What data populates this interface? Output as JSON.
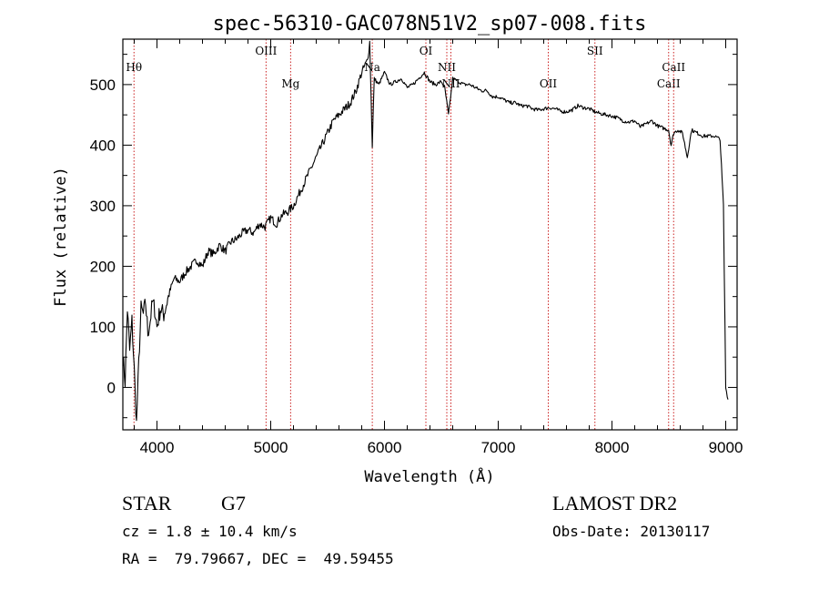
{
  "chart_data": {
    "type": "line",
    "title": "spec-56310-GAC078N51V2_sp07-008.fits",
    "xlabel": "Wavelength (Å)",
    "ylabel": "Flux (relative)",
    "xlim": [
      3700,
      9100
    ],
    "ylim": [
      -70,
      575
    ],
    "xticks": [
      4000,
      5000,
      6000,
      7000,
      8000,
      9000
    ],
    "yticks": [
      0,
      100,
      200,
      300,
      400,
      500
    ],
    "xtick_labels": [
      "4000",
      "5000",
      "6000",
      "7000",
      "8000",
      "9000"
    ],
    "ytick_labels": [
      "0",
      "100",
      "200",
      "300",
      "400",
      "500"
    ],
    "grid": false,
    "line_color": "#000000",
    "marker_color": "#cc2222",
    "spectral_lines": [
      {
        "label": "Hθ",
        "wavelength": 3798,
        "row": "upper"
      },
      {
        "label": "OIII",
        "wavelength": 4959,
        "row": "top"
      },
      {
        "label": "Mg",
        "wavelength": 5175,
        "row": "lower"
      },
      {
        "label": "Na",
        "wavelength": 5893,
        "row": "upper"
      },
      {
        "label": "OI",
        "wavelength": 6364,
        "row": "top"
      },
      {
        "label": "NII",
        "wavelength": 6548,
        "row": "upper"
      },
      {
        "label": "NII",
        "wavelength": 6584,
        "row": "lower"
      },
      {
        "label": "OII",
        "wavelength": 7440,
        "row": "lower"
      },
      {
        "label": "SII",
        "wavelength": 7850,
        "row": "top"
      },
      {
        "label": "CaII",
        "wavelength": 8498,
        "row": "lower"
      },
      {
        "label": "CaII",
        "wavelength": 8542,
        "row": "upper"
      }
    ],
    "series": [
      {
        "x": [
          3700,
          3720,
          3740,
          3760,
          3780,
          3800,
          3820,
          3840,
          3860,
          3880,
          3900,
          3920,
          3940,
          3960,
          3980,
          4000,
          4030,
          4060,
          4100,
          4150,
          4200,
          4250,
          4300,
          4350,
          4400,
          4450,
          4500,
          4550,
          4600,
          4650,
          4700,
          4750,
          4800,
          4850,
          4900,
          4950,
          5000,
          5050,
          5100,
          5150,
          5200,
          5250,
          5300,
          5350,
          5400,
          5450,
          5500,
          5550,
          5600,
          5650,
          5700,
          5750,
          5800,
          5850,
          5870,
          5893,
          5910,
          5950,
          6000,
          6050,
          6100,
          6150,
          6200,
          6250,
          6300,
          6350,
          6400,
          6450,
          6500,
          6530,
          6563,
          6600,
          6650,
          6700,
          6750,
          6800,
          6850,
          6900,
          6950,
          7000,
          7050,
          7100,
          7150,
          7200,
          7250,
          7300,
          7350,
          7400,
          7450,
          7500,
          7550,
          7600,
          7650,
          7700,
          7750,
          7800,
          7850,
          7900,
          7950,
          8000,
          8050,
          8100,
          8150,
          8200,
          8250,
          8300,
          8350,
          8400,
          8450,
          8498,
          8520,
          8542,
          8580,
          8620,
          8662,
          8700,
          8750,
          8800,
          8850,
          8900,
          8950,
          8980,
          9000,
          9020
        ],
        "y": [
          50,
          10,
          130,
          60,
          110,
          30,
          -60,
          40,
          130,
          120,
          140,
          90,
          110,
          140,
          130,
          100,
          130,
          120,
          150,
          180,
          175,
          190,
          200,
          210,
          200,
          225,
          220,
          235,
          225,
          240,
          245,
          255,
          260,
          255,
          270,
          265,
          280,
          270,
          285,
          290,
          300,
          320,
          340,
          360,
          380,
          400,
          420,
          440,
          450,
          460,
          470,
          490,
          520,
          540,
          570,
          400,
          510,
          500,
          520,
          500,
          505,
          510,
          495,
          500,
          510,
          520,
          505,
          500,
          505,
          495,
          450,
          510,
          505,
          500,
          500,
          495,
          490,
          490,
          480,
          480,
          475,
          470,
          470,
          465,
          465,
          460,
          458,
          460,
          462,
          460,
          456,
          455,
          458,
          465,
          462,
          460,
          455,
          452,
          450,
          448,
          445,
          440,
          438,
          440,
          430,
          435,
          440,
          432,
          428,
          425,
          400,
          420,
          425,
          420,
          380,
          425,
          420,
          415,
          415,
          415,
          410,
          300,
          0,
          -20
        ]
      }
    ]
  },
  "info": {
    "object_class": "STAR",
    "subclass": "G7",
    "survey": "LAMOST DR2",
    "cz": "cz = 1.8 ± 10.4 km/s",
    "obs_date": "Obs-Date: 20130117",
    "coords": "RA =  79.79667, DEC =  49.59455"
  }
}
